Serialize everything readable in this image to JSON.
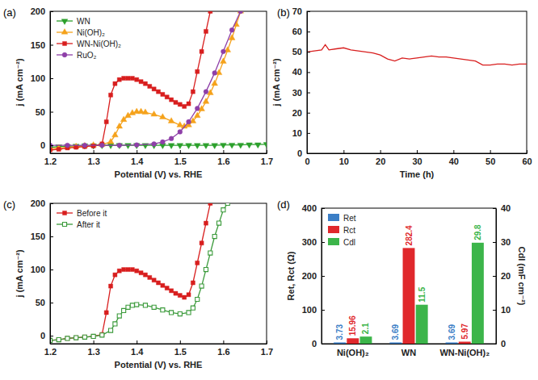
{
  "chart_data": [
    {
      "type": "line",
      "title": "(a)",
      "xlabel": "Potential (V) vs. RHE",
      "ylabel": "j (mA cm⁻²)",
      "xlim": [
        1.2,
        1.7
      ],
      "xticks": [
        1.2,
        1.3,
        1.4,
        1.5,
        1.6,
        1.7
      ],
      "ylim": [
        -12,
        200
      ],
      "yticks": [
        0,
        50,
        100,
        150,
        200
      ],
      "legend": "upper left",
      "series": [
        {
          "name": "WN",
          "color": "#2ca02c",
          "marker": "triangle-down",
          "line_style": "solid",
          "x": [
            1.2,
            1.22,
            1.24,
            1.26,
            1.28,
            1.3,
            1.32,
            1.34,
            1.36,
            1.38,
            1.4,
            1.42,
            1.44,
            1.46,
            1.48,
            1.5,
            1.52,
            1.54,
            1.56,
            1.58,
            1.6,
            1.62,
            1.64,
            1.66,
            1.68,
            1.7
          ],
          "values": [
            -3,
            -2,
            -1.5,
            -1,
            -0.5,
            -0.5,
            0,
            0,
            0,
            0,
            0,
            0,
            0,
            0,
            0,
            0,
            0,
            0,
            0,
            0,
            0.5,
            0.5,
            0.5,
            1,
            1,
            1.5
          ]
        },
        {
          "name": "Ni(OH)₂",
          "color": "#f5a21b",
          "marker": "triangle-up",
          "line_style": "solid",
          "x": [
            1.2,
            1.22,
            1.24,
            1.26,
            1.28,
            1.3,
            1.32,
            1.34,
            1.35,
            1.36,
            1.37,
            1.38,
            1.39,
            1.4,
            1.41,
            1.42,
            1.44,
            1.46,
            1.48,
            1.5,
            1.51,
            1.52,
            1.53,
            1.54,
            1.55,
            1.56,
            1.57,
            1.58,
            1.59,
            1.6,
            1.61,
            1.62,
            1.63,
            1.64
          ],
          "values": [
            -5,
            -4,
            -3,
            -2,
            -1,
            0,
            1,
            5,
            15,
            28,
            38,
            44,
            48,
            50,
            50,
            49,
            46,
            42,
            36,
            30,
            28,
            30,
            36,
            44,
            54,
            65,
            78,
            92,
            108,
            125,
            142,
            160,
            180,
            200
          ]
        },
        {
          "name": "WN-Ni(OH)₂",
          "color": "#d81e1e",
          "marker": "square",
          "line_style": "solid",
          "x": [
            1.2,
            1.22,
            1.24,
            1.26,
            1.28,
            1.3,
            1.32,
            1.33,
            1.34,
            1.35,
            1.36,
            1.37,
            1.38,
            1.39,
            1.4,
            1.41,
            1.42,
            1.43,
            1.44,
            1.45,
            1.46,
            1.47,
            1.48,
            1.49,
            1.5,
            1.51,
            1.52,
            1.53,
            1.54,
            1.55,
            1.56,
            1.57
          ],
          "values": [
            -7,
            -6,
            -4,
            -3,
            -2,
            -1,
            2,
            35,
            75,
            92,
            98,
            100,
            100,
            100,
            98,
            95,
            92,
            88,
            84,
            80,
            76,
            72,
            68,
            64,
            61,
            58,
            62,
            80,
            110,
            140,
            170,
            200
          ]
        },
        {
          "name": "RuO₂",
          "color": "#8e3fa8",
          "marker": "circle",
          "line_style": "solid",
          "x": [
            1.2,
            1.24,
            1.28,
            1.32,
            1.36,
            1.4,
            1.44,
            1.46,
            1.48,
            1.5,
            1.52,
            1.54,
            1.56,
            1.58,
            1.6,
            1.62,
            1.64
          ],
          "values": [
            0,
            0,
            0,
            0,
            0,
            0.5,
            2,
            5,
            10,
            20,
            35,
            55,
            80,
            108,
            140,
            172,
            200
          ]
        }
      ]
    },
    {
      "type": "line",
      "title": "(b)",
      "xlabel": "Time (h)",
      "ylabel": "j (mA cm⁻²)",
      "xlim": [
        0,
        60
      ],
      "xticks": [
        0,
        10,
        20,
        30,
        40,
        50,
        60
      ],
      "ylim": [
        0,
        70
      ],
      "yticks": [
        0,
        10,
        20,
        30,
        40,
        50,
        60,
        70
      ],
      "series": [
        {
          "color": "#d81e1e",
          "marker": "none",
          "line_style": "solid",
          "x": [
            0,
            2,
            4,
            5,
            6,
            8,
            10,
            12,
            14,
            16,
            18,
            20,
            22,
            24,
            26,
            28,
            30,
            32,
            34,
            36,
            38,
            40,
            42,
            44,
            46,
            48,
            50,
            52,
            54,
            56,
            58,
            60
          ],
          "values": [
            50,
            50.5,
            51,
            53.5,
            51,
            51.5,
            52,
            51,
            50.5,
            50,
            49.5,
            48.5,
            46.5,
            45.5,
            47,
            46.5,
            47,
            47.5,
            48,
            47.5,
            47.5,
            47,
            46.5,
            46,
            45.5,
            43.5,
            43.5,
            44,
            44,
            43.5,
            44,
            44
          ]
        }
      ]
    },
    {
      "type": "line",
      "title": "(c)",
      "xlabel": "Potential (V) vs. RHE",
      "ylabel": "j (mA cm⁻²)",
      "xlim": [
        1.2,
        1.7
      ],
      "xticks": [
        1.2,
        1.3,
        1.4,
        1.5,
        1.6,
        1.7
      ],
      "ylim": [
        -12,
        200
      ],
      "yticks": [
        0,
        50,
        100,
        150,
        200
      ],
      "legend": "upper left",
      "series": [
        {
          "name": "Before it",
          "color": "#d81e1e",
          "marker": "square",
          "line_style": "solid",
          "x": [
            1.2,
            1.22,
            1.24,
            1.26,
            1.28,
            1.3,
            1.32,
            1.33,
            1.34,
            1.35,
            1.36,
            1.37,
            1.38,
            1.39,
            1.4,
            1.41,
            1.42,
            1.43,
            1.44,
            1.45,
            1.46,
            1.47,
            1.48,
            1.49,
            1.5,
            1.51,
            1.52,
            1.53,
            1.54,
            1.55,
            1.56,
            1.57
          ],
          "values": [
            -7,
            -6,
            -4,
            -3,
            -2,
            -1,
            2,
            35,
            75,
            92,
            98,
            100,
            100,
            100,
            98,
            95,
            92,
            88,
            84,
            80,
            76,
            72,
            68,
            64,
            61,
            58,
            62,
            80,
            110,
            140,
            170,
            200
          ]
        },
        {
          "name": "After it",
          "color": "#3a9a3a",
          "marker": "open-square",
          "line_style": "solid",
          "x": [
            1.2,
            1.22,
            1.24,
            1.26,
            1.28,
            1.3,
            1.32,
            1.34,
            1.35,
            1.36,
            1.37,
            1.38,
            1.39,
            1.4,
            1.42,
            1.44,
            1.46,
            1.48,
            1.5,
            1.52,
            1.53,
            1.54,
            1.55,
            1.56,
            1.57,
            1.58,
            1.59,
            1.6,
            1.61
          ],
          "values": [
            -7,
            -6,
            -4,
            -3,
            -2,
            -1,
            1,
            8,
            18,
            30,
            38,
            43,
            46,
            47,
            46,
            43,
            39,
            35,
            33,
            35,
            42,
            55,
            75,
            100,
            125,
            150,
            170,
            190,
            200
          ]
        }
      ]
    },
    {
      "type": "bar",
      "title": "(d)",
      "ylabel": "Ret, Rct (Ω)",
      "y2label": "Cdl (mF cm⁻²)",
      "categories": [
        "Ni(OH)₂",
        "WN",
        "WN-Ni(OH)₂"
      ],
      "ylim": [
        0,
        400
      ],
      "yticks": [
        0,
        100,
        200,
        300,
        400
      ],
      "y2lim": [
        0,
        40
      ],
      "y2ticks": [
        0,
        10,
        20,
        30,
        40
      ],
      "data_labels": true,
      "legend": "upper left",
      "series": [
        {
          "name": "Ret",
          "color": "#3b7ec6",
          "values": [
            3.73,
            3.69,
            3.69
          ]
        },
        {
          "name": "Rct",
          "color": "#e0282c",
          "values": [
            15.96,
            282.4,
            5.97
          ]
        },
        {
          "name": "Cdl",
          "color": "#3cb54a",
          "axis": "y2",
          "values": [
            2.1,
            11.5,
            29.8
          ]
        }
      ]
    }
  ]
}
